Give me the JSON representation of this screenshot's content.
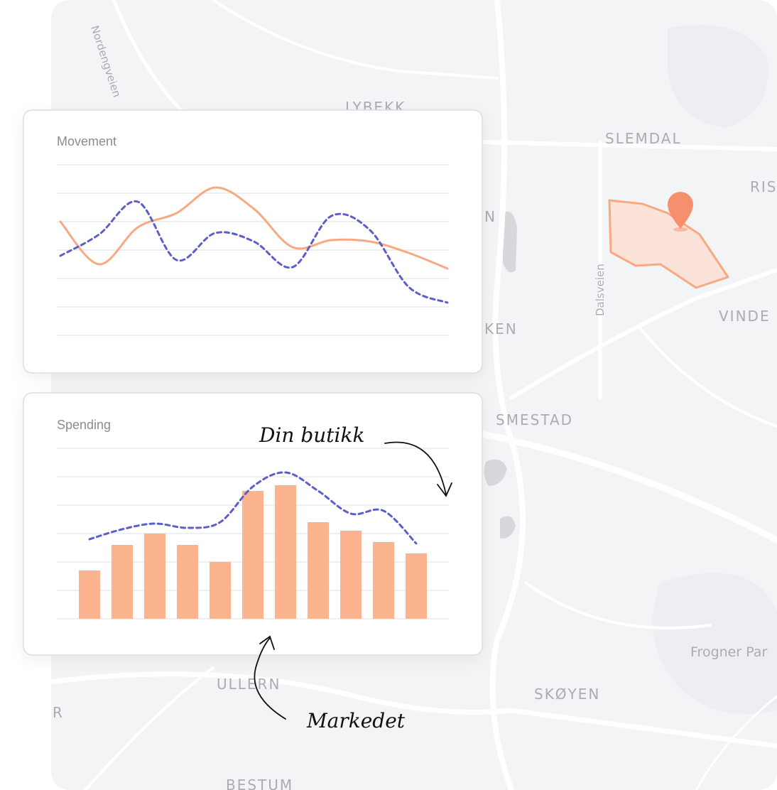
{
  "map": {
    "labels": [
      "Nordengveien",
      "LYBEKK",
      "SLEMDAL",
      "RIS",
      "Dalsveien",
      "VINDE",
      "KEN",
      "N",
      "SMESTAD",
      "ULLERN",
      "SKØYEN",
      "Frogner Par",
      "BESTUM",
      "R"
    ]
  },
  "chart_data": [
    {
      "type": "line",
      "title": "Movement",
      "categories": [
        null,
        null,
        null,
        null,
        null,
        null,
        null,
        null,
        null,
        null,
        null
      ],
      "ylim": [
        0,
        6
      ],
      "yticks": [
        0,
        1,
        2,
        3,
        4,
        5,
        6
      ],
      "grid": true,
      "series": [
        {
          "color": "#f7a982",
          "dashed": false,
          "values": [
            4.0,
            2.5,
            3.8,
            4.3,
            5.2,
            4.45,
            3.1,
            3.35,
            3.3,
            2.9,
            2.35
          ]
        },
        {
          "color": "#5b5fc7",
          "dashed": true,
          "values": [
            2.8,
            3.55,
            4.7,
            2.65,
            3.6,
            3.3,
            2.4,
            4.2,
            3.7,
            1.7,
            1.15
          ]
        }
      ]
    },
    {
      "type": "bar",
      "title": "Spending",
      "categories": [
        null,
        null,
        null,
        null,
        null,
        null,
        null,
        null,
        null,
        null,
        null
      ],
      "ylim": [
        0,
        6
      ],
      "yticks": [
        0,
        1,
        2,
        3,
        4,
        5,
        6
      ],
      "grid": true,
      "series": [
        {
          "type": "bar",
          "color": "#fbb48e",
          "values": [
            1.7,
            2.6,
            3.0,
            2.6,
            2.0,
            4.5,
            4.7,
            3.4,
            3.1,
            2.7,
            2.3
          ]
        },
        {
          "type": "line",
          "color": "#5b5fc7",
          "dashed": true,
          "values": [
            2.8,
            3.15,
            3.35,
            3.2,
            3.4,
            4.65,
            5.15,
            4.5,
            3.7,
            3.8,
            2.65
          ]
        }
      ],
      "annotations": [
        "Din butikk",
        "Markedet"
      ]
    }
  ]
}
